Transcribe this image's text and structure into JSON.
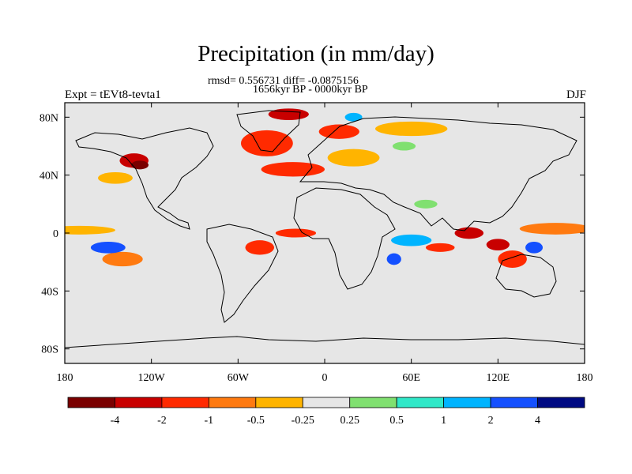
{
  "header": {
    "title": "Precipitation (in mm/day)",
    "stats": "rmsd= 0.556731 diff= -0.0875156",
    "period": "1656kyr BP - 0000kyr BP",
    "experiment": "Expt = tEVt8-tevta1",
    "season": "DJF"
  },
  "chart_data": {
    "type": "heatmap",
    "title": "Precipitation (in mm/day)",
    "subtitle": "1656kyr BP - 0000kyr BP",
    "variable": "Precipitation difference",
    "units": "mm/day",
    "stats": {
      "rmsd": 0.556731,
      "diff": -0.0875156
    },
    "season": "DJF",
    "experiment": "tEVt8-tevta1",
    "xlim": [
      -180,
      180
    ],
    "ylim": [
      -90,
      90
    ],
    "x_ticks": [
      {
        "value": -180,
        "label": "180"
      },
      {
        "value": -120,
        "label": "120W"
      },
      {
        "value": -60,
        "label": "60W"
      },
      {
        "value": 0,
        "label": "0"
      },
      {
        "value": 60,
        "label": "60E"
      },
      {
        "value": 120,
        "label": "120E"
      },
      {
        "value": 180,
        "label": "180"
      }
    ],
    "y_ticks": [
      {
        "value": 80,
        "label": "80N"
      },
      {
        "value": 40,
        "label": "40N"
      },
      {
        "value": 0,
        "label": "0"
      },
      {
        "value": -40,
        "label": "40S"
      },
      {
        "value": -80,
        "label": "80S"
      }
    ],
    "colorbar": {
      "levels": [
        -4,
        -2,
        -1,
        -0.5,
        -0.25,
        0.25,
        0.5,
        1,
        2,
        4
      ],
      "labels": [
        "-4",
        "-2",
        "-1",
        "-0.5",
        "-0.25",
        "0.25",
        "0.5",
        "1",
        "2",
        "4"
      ],
      "colors": [
        "#7a0000",
        "#c80000",
        "#ff2a00",
        "#ff7a10",
        "#ffb400",
        "#e6e6e6",
        "#80e070",
        "#30e8c8",
        "#00b4ff",
        "#1450ff",
        "#000a82"
      ]
    },
    "regions": [
      {
        "lon": -132,
        "lat": 50,
        "rlon": 10,
        "rlat": 5,
        "value": -3.5
      },
      {
        "lon": -128,
        "lat": 47,
        "rlon": 6,
        "rlat": 3,
        "value": -5
      },
      {
        "lon": -40,
        "lat": 62,
        "rlon": 18,
        "rlat": 9,
        "value": -1.5
      },
      {
        "lon": -25,
        "lat": 82,
        "rlon": 14,
        "rlat": 4,
        "value": -2.5
      },
      {
        "lon": 10,
        "lat": 70,
        "rlon": 14,
        "rlat": 5,
        "value": -1.5
      },
      {
        "lon": -22,
        "lat": 44,
        "rlon": 22,
        "rlat": 5,
        "value": -1.5
      },
      {
        "lon": 20,
        "lat": 52,
        "rlon": 18,
        "rlat": 6,
        "value": -0.4
      },
      {
        "lon": 60,
        "lat": 72,
        "rlon": 25,
        "rlat": 5,
        "value": -0.4
      },
      {
        "lon": -145,
        "lat": 38,
        "rlon": 12,
        "rlat": 4,
        "value": -0.4
      },
      {
        "lon": -170,
        "lat": 2,
        "rlon": 25,
        "rlat": 3,
        "value": -0.4
      },
      {
        "lon": 160,
        "lat": 3,
        "rlon": 25,
        "rlat": 4,
        "value": -0.6
      },
      {
        "lon": -20,
        "lat": 0,
        "rlon": 14,
        "rlat": 3,
        "value": -1.5
      },
      {
        "lon": 100,
        "lat": 0,
        "rlon": 10,
        "rlat": 4,
        "value": -3.5
      },
      {
        "lon": 120,
        "lat": -8,
        "rlon": 8,
        "rlat": 4,
        "value": -2.5
      },
      {
        "lon": 130,
        "lat": -18,
        "rlon": 10,
        "rlat": 6,
        "value": -1.5
      },
      {
        "lon": 80,
        "lat": -10,
        "rlon": 10,
        "rlat": 3,
        "value": -1.5
      },
      {
        "lon": -140,
        "lat": -18,
        "rlon": 14,
        "rlat": 5,
        "value": -0.7
      },
      {
        "lon": -45,
        "lat": -10,
        "rlon": 10,
        "rlat": 5,
        "value": -1.5
      },
      {
        "lon": -150,
        "lat": -10,
        "rlon": 12,
        "rlat": 4,
        "value": 2.5
      },
      {
        "lon": 60,
        "lat": -5,
        "rlon": 14,
        "rlat": 4,
        "value": 1.5
      },
      {
        "lon": 48,
        "lat": -18,
        "rlon": 5,
        "rlat": 4,
        "value": 2.5
      },
      {
        "lon": 145,
        "lat": -10,
        "rlon": 6,
        "rlat": 4,
        "value": 3
      },
      {
        "lon": 20,
        "lat": 80,
        "rlon": 6,
        "rlat": 3,
        "value": 1.5
      },
      {
        "lon": 55,
        "lat": 60,
        "rlon": 8,
        "rlat": 3,
        "value": 0.4
      },
      {
        "lon": 70,
        "lat": 20,
        "rlon": 8,
        "rlat": 3,
        "value": 0.3
      }
    ]
  }
}
